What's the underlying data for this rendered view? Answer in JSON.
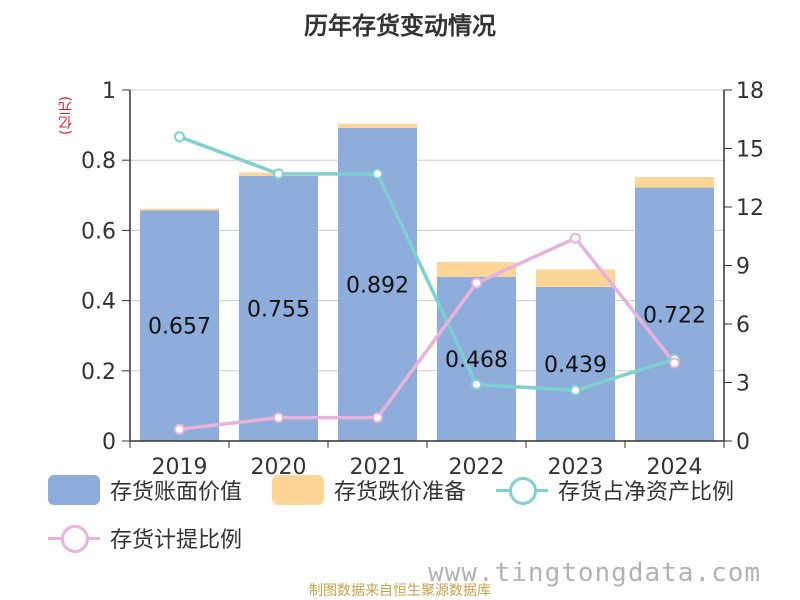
{
  "chart_data": {
    "type": "bar",
    "title": "历年存货变动情况",
    "left_axis_unit": "(亿元)",
    "categories": [
      "2019",
      "2020",
      "2021",
      "2022",
      "2023",
      "2024"
    ],
    "left_ylim": [
      0,
      1
    ],
    "left_ticks": [
      "0",
      "0.2",
      "0.4",
      "0.6",
      "0.8",
      "1"
    ],
    "right_ylim": [
      0,
      18
    ],
    "right_ticks": [
      "0",
      "3",
      "6",
      "9",
      "12",
      "15",
      "18"
    ],
    "series": [
      {
        "name": "存货账面价值",
        "kind": "bar",
        "color": "#8eaddb",
        "values": [
          0.657,
          0.755,
          0.892,
          0.468,
          0.439,
          0.722
        ],
        "labels": [
          "0.657",
          "0.755",
          "0.892",
          "0.468",
          "0.439",
          "0.722"
        ]
      },
      {
        "name": "存货跌价准备",
        "kind": "bar-stacked",
        "color": "#fcd597",
        "values": [
          0.005,
          0.01,
          0.012,
          0.042,
          0.05,
          0.03
        ]
      },
      {
        "name": "存货占净资产比例",
        "kind": "line",
        "axis": "right",
        "color": "#7fd1d1",
        "values": [
          15.6,
          13.7,
          13.7,
          2.9,
          2.6,
          4.2
        ]
      },
      {
        "name": "存货计提比例",
        "kind": "line",
        "axis": "right",
        "color": "#e6b3db",
        "values": [
          0.6,
          1.2,
          1.2,
          8.1,
          10.4,
          4.0
        ]
      }
    ]
  },
  "footer": {
    "source": "制图数据来自恒生聚源数据库",
    "watermark": "www.tingtongdata.com"
  }
}
